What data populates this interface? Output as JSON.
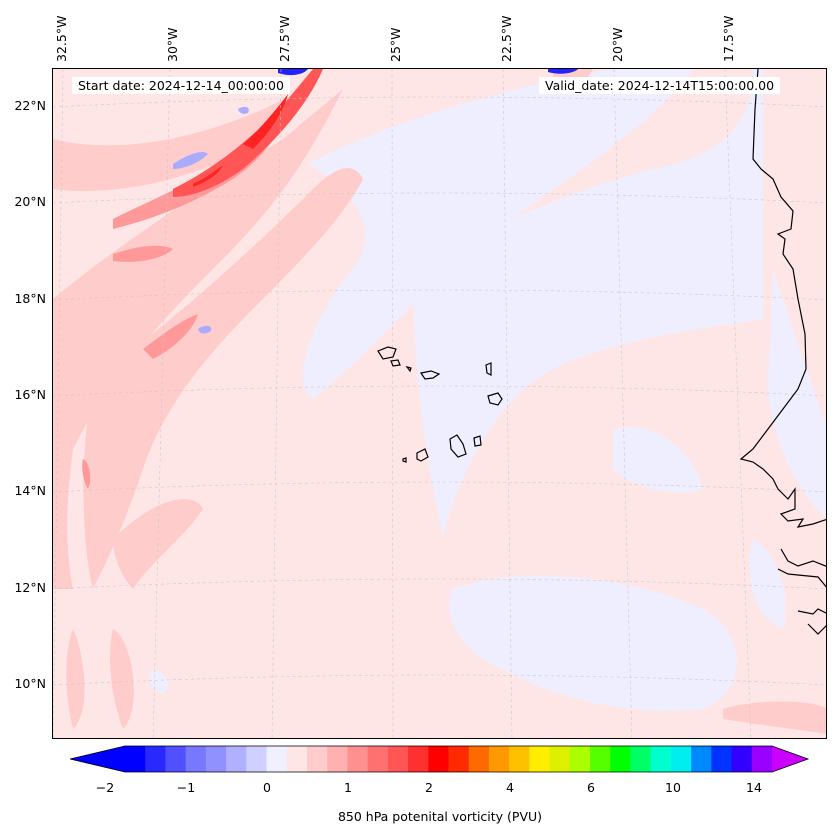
{
  "map": {
    "start_date": "Start date: 2024-12-14_00:00:00",
    "valid_date": "Valid_date: 2024-12-14T15:00:00.00",
    "lon_labels": [
      "32.5°W",
      "30°W",
      "27.5°W",
      "25°W",
      "22.5°W",
      "20°W",
      "17.5°W"
    ],
    "lat_labels": [
      "22°N",
      "20°N",
      "18°N",
      "16°N",
      "14°N",
      "12°N",
      "10°N"
    ],
    "field_colors": {
      "background": "#ffe6e6",
      "light_blue": "#eeeeff",
      "pale_red": "#ffcccc",
      "medium_red": "#ff9999",
      "strong_red": "#ff5555",
      "deep_red": "#ff2222",
      "blue": "#2222ff"
    }
  },
  "colorbar": {
    "label": "850 hPa potenital vorticity (PVU)",
    "tick_labels": [
      "−2",
      "−1",
      "0",
      "1",
      "2",
      "4",
      "6",
      "10",
      "14"
    ],
    "colors": [
      "#0000ff",
      "#2828ff",
      "#5050ff",
      "#7878ff",
      "#9090ff",
      "#b0b0ff",
      "#d0d0ff",
      "#f0f0ff",
      "#ffe6e6",
      "#ffcccc",
      "#ffb0b0",
      "#ff9090",
      "#ff7070",
      "#ff5555",
      "#ff3030",
      "#ff0000",
      "#ff2a00",
      "#ff6a00",
      "#ff9900",
      "#ffc000",
      "#ffee00",
      "#ddf000",
      "#aaff00",
      "#55ff00",
      "#00ff00",
      "#00ff66",
      "#00ffcc",
      "#00eeee",
      "#0088ff",
      "#0033ff",
      "#3300ff",
      "#9900ff"
    ],
    "extend_low_color": "#0000ff",
    "extend_high_color": "#cc00ff"
  }
}
